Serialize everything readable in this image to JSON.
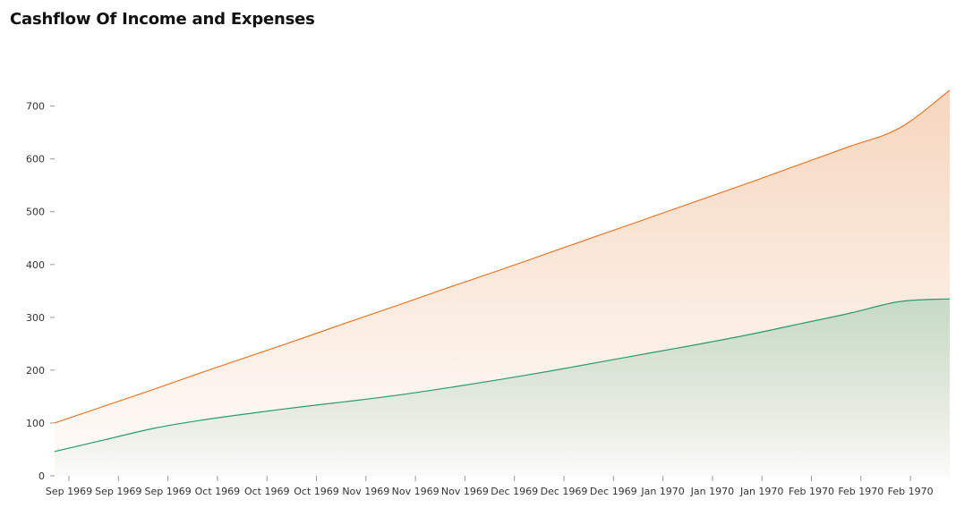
{
  "chart_data": {
    "type": "area",
    "title": "Cashflow Of Income and Expenses",
    "xlabel": "",
    "ylabel": "",
    "ylim": [
      0,
      740
    ],
    "yticks": [
      0,
      100,
      200,
      300,
      400,
      500,
      600,
      700
    ],
    "xtick_labels": [
      "Sep 1969",
      "Sep 1969",
      "Sep 1969",
      "Oct 1969",
      "Oct 1969",
      "Oct 1969",
      "Nov 1969",
      "Nov 1969",
      "Nov 1969",
      "Dec 1969",
      "Dec 1969",
      "Dec 1969",
      "Jan 1970",
      "Jan 1970",
      "Jan 1970",
      "Feb 1970",
      "Feb 1970",
      "Feb 1970"
    ],
    "grid": false,
    "legend": "none",
    "series": [
      {
        "color": "#e8782a",
        "fill": "#f6d9c4",
        "x": [
          0,
          1,
          2,
          3,
          4,
          5,
          6,
          7,
          8,
          9,
          10,
          11,
          12,
          13,
          14,
          15,
          16,
          17,
          18
        ],
        "values": [
          100,
          132,
          164,
          197,
          229,
          261,
          294,
          326,
          359,
          391,
          424,
          457,
          490,
          523,
          556,
          590,
          624,
          659,
          730
        ]
      },
      {
        "color": "#2b9a6b",
        "fill": "#cfe3d4",
        "x": [
          0,
          1,
          2,
          3,
          4,
          5,
          6,
          7,
          8,
          9,
          10,
          11,
          12,
          13,
          14,
          15,
          16,
          17,
          18
        ],
        "values": [
          46,
          68,
          90,
          106,
          119,
          131,
          142,
          154,
          168,
          183,
          199,
          216,
          233,
          250,
          268,
          288,
          308,
          330,
          335
        ]
      }
    ]
  }
}
